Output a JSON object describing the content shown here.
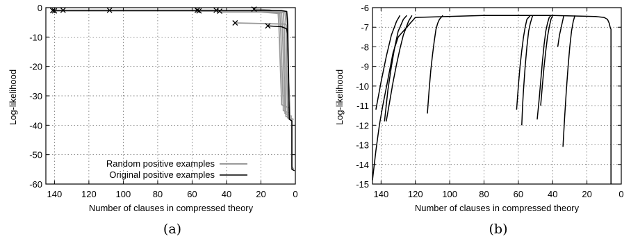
{
  "panel_labels": [
    "(a)",
    "(b)"
  ],
  "chart_data": [
    {
      "type": "line",
      "panel": "(a)",
      "xlabel": "Number of clauses in compressed theory",
      "ylabel": "Log-likelihood",
      "xlim": [
        145,
        0
      ],
      "ylim": [
        -60,
        0
      ],
      "x_reversed": true,
      "xticks": [
        140,
        120,
        100,
        80,
        60,
        40,
        20,
        0
      ],
      "yticks": [
        0,
        -10,
        -20,
        -30,
        -40,
        -50,
        -60
      ],
      "grid": true,
      "legend_position": "bottom-center",
      "colors": {
        "random": "#999999",
        "original": "#000000"
      },
      "series": [
        {
          "name": "Random positive examples",
          "color": "#999999",
          "lines": [
            {
              "x": [
                141,
                60,
                20,
                5,
                4.5,
                3.5,
                3.5,
                1
              ],
              "y": [
                -1.0,
                -1.0,
                -1.0,
                -1.3,
                -4,
                -37,
                -37.5,
                -38
              ]
            },
            {
              "x": [
                140,
                60,
                20,
                6,
                5.5,
                4.5,
                4.5,
                1.5
              ],
              "y": [
                -1.1,
                -1.1,
                -1.1,
                -1.5,
                -5,
                -37,
                -37.5,
                -38
              ]
            },
            {
              "x": [
                57,
                20,
                7,
                6.5,
                5.5,
                5.5,
                2
              ],
              "y": [
                -1.2,
                -1.2,
                -1.6,
                -6,
                -36,
                -37,
                -37.5
              ]
            },
            {
              "x": [
                46,
                20,
                8,
                7.5,
                6,
                6,
                2
              ],
              "y": [
                -1.3,
                -1.3,
                -1.8,
                -7,
                -35,
                -36,
                -37
              ]
            },
            {
              "x": [
                44,
                20,
                9,
                8.5,
                7,
                7,
                3
              ],
              "y": [
                -1.5,
                -1.5,
                -2,
                -8,
                -34,
                -35,
                -36
              ]
            },
            {
              "x": [
                24,
                15,
                10,
                9.5,
                8,
                8,
                4
              ],
              "y": [
                -0.5,
                -0.8,
                -1.5,
                -7,
                -32,
                -33,
                -34
              ]
            },
            {
              "x": [
                35,
                20,
                6,
                5,
                3,
                2,
                2,
                1
              ],
              "y": [
                -5.2,
                -5.4,
                -5.6,
                -6,
                -38,
                -38.5,
                -54,
                -55
              ]
            }
          ]
        },
        {
          "name": "Original positive examples",
          "color": "#000000",
          "lines": [
            {
              "x": [
                141,
                110,
                60,
                25,
                8,
                5,
                4.5,
                3.5,
                3.5,
                2,
                2,
                0.5
              ],
              "y": [
                -0.9,
                -0.9,
                -0.9,
                -0.9,
                -1.0,
                -1.3,
                -6,
                -38,
                -38,
                -38.5,
                -55,
                -55.5
              ]
            },
            {
              "x": [
                16,
                8,
                5,
                4.5,
                3.5,
                2
              ],
              "y": [
                -6.2,
                -6.5,
                -7.2,
                -9,
                -38,
                -38.5
              ]
            }
          ]
        }
      ],
      "markers": {
        "symbol": "x",
        "x": [
          141,
          140,
          135,
          108,
          57,
          56,
          46,
          44,
          35,
          24,
          16
        ],
        "y": [
          -1.0,
          -1.1,
          -0.9,
          -0.9,
          -0.9,
          -1.1,
          -0.9,
          -1.2,
          -5.2,
          -0.5,
          -6.2
        ]
      }
    },
    {
      "type": "line",
      "panel": "(b)",
      "xlabel": "Number of clauses in compressed theory",
      "ylabel": "Log-likelihood",
      "xlim": [
        145,
        0
      ],
      "ylim": [
        -15,
        -6
      ],
      "x_reversed": true,
      "xticks": [
        140,
        120,
        100,
        80,
        60,
        40,
        20,
        0
      ],
      "yticks": [
        -6,
        -7,
        -8,
        -9,
        -10,
        -11,
        -12,
        -13,
        -14,
        -15
      ],
      "grid": true,
      "series": [
        {
          "color": "#000000",
          "lines": [
            {
              "x": [
                145,
                143,
                141,
                139,
                137,
                135,
                133,
                130,
                120,
                80,
                40,
                15,
                10,
                8,
                7,
                6.5,
                6.3,
                6,
                6,
                6
              ],
              "y": [
                -14.8,
                -13.3,
                -12,
                -11,
                -10.1,
                -9.2,
                -8.3,
                -7.5,
                -6.5,
                -6.4,
                -6.4,
                -6.45,
                -6.5,
                -6.6,
                -6.8,
                -7.0,
                -7.05,
                -7.1,
                -12,
                -15
              ]
            },
            {
              "x": [
                143,
                140,
                137,
                134,
                131,
                129
              ],
              "y": [
                -11.2,
                -9.8,
                -8.5,
                -7.4,
                -6.7,
                -6.4
              ]
            },
            {
              "x": [
                138,
                136,
                134,
                132,
                130,
                127,
                125
              ],
              "y": [
                -11.8,
                -10.2,
                -9.0,
                -8.0,
                -7.2,
                -6.6,
                -6.4
              ]
            },
            {
              "x": [
                137,
                135,
                133,
                131,
                129,
                127,
                124,
                122
              ],
              "y": [
                -11.8,
                -10.8,
                -9.8,
                -8.9,
                -8.1,
                -7.4,
                -6.7,
                -6.4
              ]
            },
            {
              "x": [
                113,
                112,
                111,
                110,
                109,
                108,
                107,
                106,
                104
              ],
              "y": [
                -11.4,
                -10.2,
                -9.2,
                -8.4,
                -7.7,
                -7.1,
                -6.8,
                -6.6,
                -6.4
              ]
            },
            {
              "x": [
                61,
                60,
                59,
                58,
                57,
                56,
                55,
                53
              ],
              "y": [
                -11.2,
                -10.0,
                -9.0,
                -8.2,
                -7.5,
                -7.0,
                -6.6,
                -6.4
              ]
            },
            {
              "x": [
                58,
                57.5,
                57,
                56,
                55,
                54,
                53,
                52,
                51.5
              ],
              "y": [
                -12.0,
                -11.0,
                -10.2,
                -9.0,
                -8.0,
                -7.2,
                -6.8,
                -6.5,
                -6.4
              ]
            },
            {
              "x": [
                49,
                48,
                47,
                46,
                45,
                44,
                43,
                42,
                41
              ],
              "y": [
                -11.7,
                -10.8,
                -9.8,
                -8.8,
                -7.9,
                -7.2,
                -6.8,
                -6.5,
                -6.4
              ]
            },
            {
              "x": [
                47,
                46,
                45,
                44,
                43,
                42,
                41,
                40
              ],
              "y": [
                -11.0,
                -10.0,
                -9.0,
                -8.2,
                -7.5,
                -7.0,
                -6.6,
                -6.4
              ]
            },
            {
              "x": [
                37,
                36,
                35,
                34,
                33.5
              ],
              "y": [
                -8.0,
                -7.4,
                -7.0,
                -6.6,
                -6.4
              ]
            },
            {
              "x": [
                34,
                33,
                32,
                31,
                30,
                29,
                28,
                27
              ],
              "y": [
                -13.1,
                -11.6,
                -10.2,
                -9.0,
                -8.0,
                -7.2,
                -6.7,
                -6.4
              ]
            }
          ]
        }
      ]
    }
  ]
}
